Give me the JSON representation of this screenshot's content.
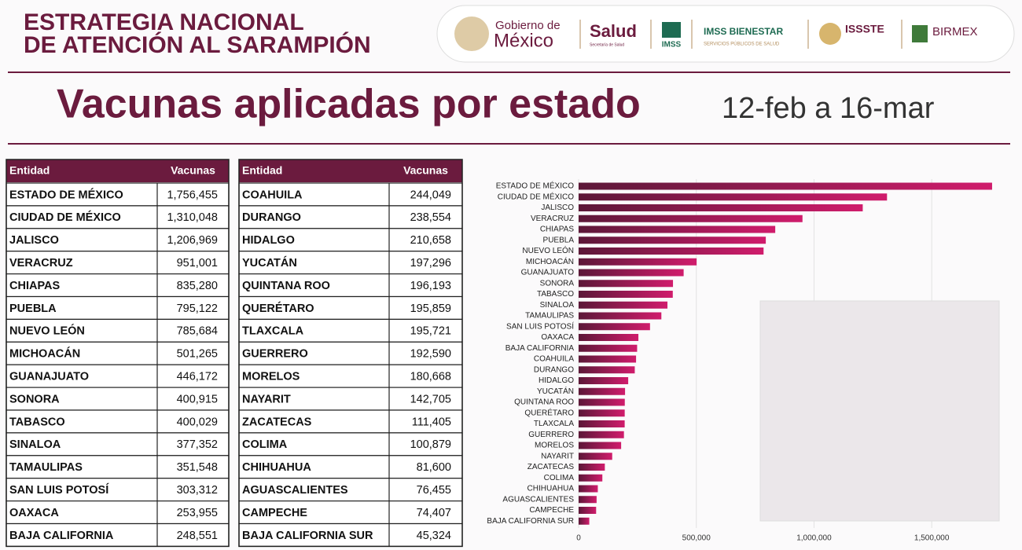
{
  "header": {
    "title_lines": [
      "ESTRATEGIA NACIONAL",
      "DE ATENCIÓN AL SARAMPIÓN"
    ],
    "logos": [
      "Gobierno de",
      "México",
      "Salud",
      "Secretaría de Salud",
      "IMSS",
      "IMSS BIENESTAR",
      "SERVICIOS PÚBLICOS DE SALUD",
      "ISSSTE",
      "BIRMEX"
    ]
  },
  "headline": {
    "title": "Vacunas aplicadas por estado",
    "period": "12-feb a 16-mar"
  },
  "tables": [
    {
      "columns": [
        "Entidad",
        "Vacunas"
      ],
      "rows": [
        [
          "ESTADO DE MÉXICO",
          "1,756,455"
        ],
        [
          "CIUDAD DE MÉXICO",
          "1,310,048"
        ],
        [
          "JALISCO",
          "1,206,969"
        ],
        [
          "VERACRUZ",
          "951,001"
        ],
        [
          "CHIAPAS",
          "835,280"
        ],
        [
          "PUEBLA",
          "795,122"
        ],
        [
          "NUEVO LEÓN",
          "785,684"
        ],
        [
          "MICHOACÁN",
          "501,265"
        ],
        [
          "GUANAJUATO",
          "446,172"
        ],
        [
          "SONORA",
          "400,915"
        ],
        [
          "TABASCO",
          "400,029"
        ],
        [
          "SINALOA",
          "377,352"
        ],
        [
          "TAMAULIPAS",
          "351,548"
        ],
        [
          "SAN LUIS POTOSÍ",
          "303,312"
        ],
        [
          "OAXACA",
          "253,955"
        ],
        [
          "BAJA CALIFORNIA",
          "248,551"
        ]
      ]
    },
    {
      "columns": [
        "Entidad",
        "Vacunas"
      ],
      "rows": [
        [
          "COAHUILA",
          "244,049"
        ],
        [
          "DURANGO",
          "238,554"
        ],
        [
          "HIDALGO",
          "210,658"
        ],
        [
          "YUCATÁN",
          "197,296"
        ],
        [
          "QUINTANA ROO",
          "196,193"
        ],
        [
          "QUERÉTARO",
          "195,859"
        ],
        [
          "TLAXCALA",
          "195,721"
        ],
        [
          "GUERRERO",
          "192,590"
        ],
        [
          "MORELOS",
          "180,668"
        ],
        [
          "NAYARIT",
          "142,705"
        ],
        [
          "ZACATECAS",
          "111,405"
        ],
        [
          "COLIMA",
          "100,879"
        ],
        [
          "CHIHUAHUA",
          "81,600"
        ],
        [
          "AGUASCALIENTES",
          "76,455"
        ],
        [
          "CAMPECHE",
          "74,407"
        ],
        [
          "BAJA CALIFORNIA SUR",
          "45,324"
        ]
      ]
    }
  ],
  "chart_data": {
    "type": "bar",
    "orientation": "horizontal",
    "categories": [
      "ESTADO DE MÉXICO",
      "CIUDAD DE MÉXICO",
      "JALISCO",
      "VERACRUZ",
      "CHIAPAS",
      "PUEBLA",
      "NUEVO LEÓN",
      "MICHOACÁN",
      "GUANAJUATO",
      "SONORA",
      "TABASCO",
      "SINALOA",
      "TAMAULIPAS",
      "SAN LUIS POTOSÍ",
      "OAXACA",
      "BAJA CALIFORNIA",
      "COAHUILA",
      "DURANGO",
      "HIDALGO",
      "YUCATÁN",
      "QUINTANA ROO",
      "QUERÉTARO",
      "TLAXCALA",
      "GUERRERO",
      "MORELOS",
      "NAYARIT",
      "ZACATECAS",
      "COLIMA",
      "CHIHUAHUA",
      "AGUASCALIENTES",
      "CAMPECHE",
      "BAJA CALIFORNIA SUR"
    ],
    "values": [
      1756455,
      1310048,
      1206969,
      951001,
      835280,
      795122,
      785684,
      501265,
      446172,
      400915,
      400029,
      377352,
      351548,
      303312,
      253955,
      248551,
      244049,
      238554,
      210658,
      197296,
      196193,
      195859,
      195721,
      192590,
      180668,
      142705,
      111405,
      100879,
      81600,
      76455,
      74407,
      45324
    ],
    "gradient": [
      "#5c1838",
      "#d01c6c"
    ],
    "xlim": [
      0,
      1800000
    ],
    "xticks": [
      0,
      {
        "value": 500000,
        "label": "500,000"
      },
      {
        "value": 1000000,
        "label": "1,000,000"
      },
      {
        "value": 1500000,
        "label": "1,500,000"
      }
    ],
    "grid": true
  }
}
